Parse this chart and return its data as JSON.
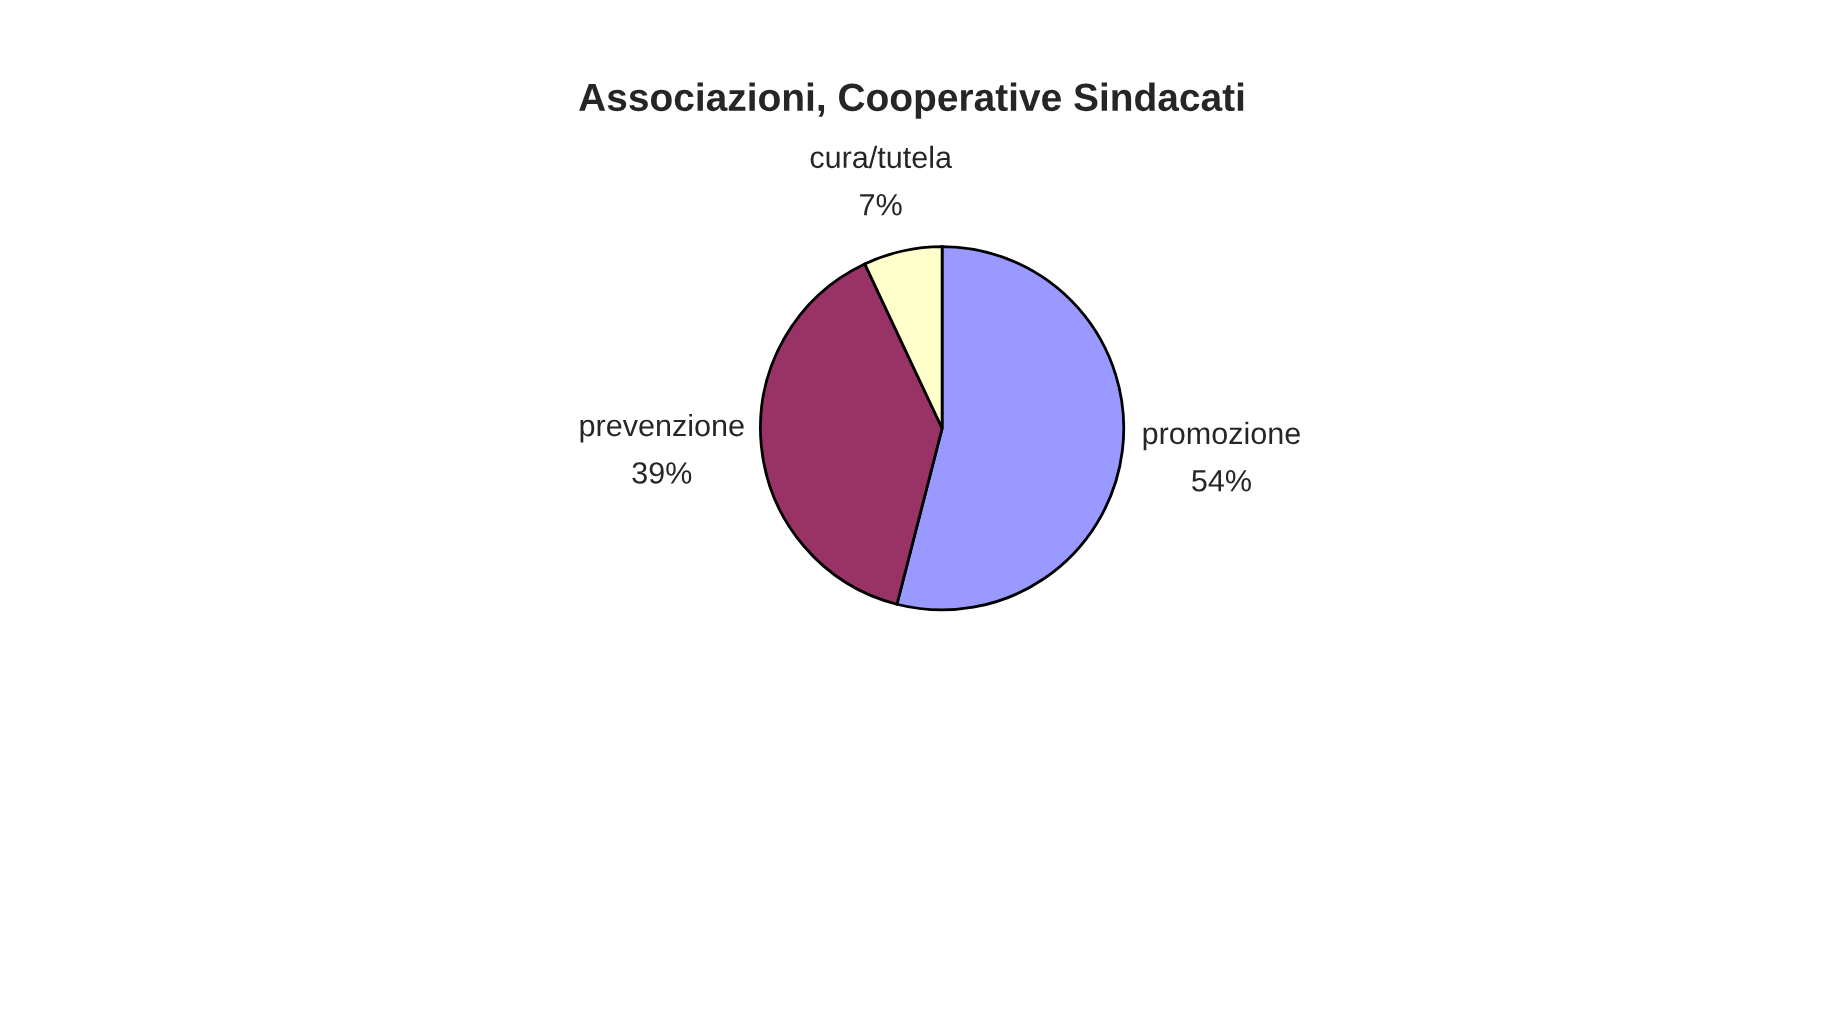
{
  "chart_data": {
    "type": "pie",
    "title": "Associazioni, Cooperative Sindacati",
    "categories": [
      "promozione",
      "prevenzione",
      "cura/tutela"
    ],
    "values": [
      54,
      39,
      7
    ],
    "value_labels": [
      "54%",
      "39%",
      "7%"
    ],
    "colors": [
      "#9999ff",
      "#993366",
      "#ffffcc"
    ],
    "legend": false
  }
}
